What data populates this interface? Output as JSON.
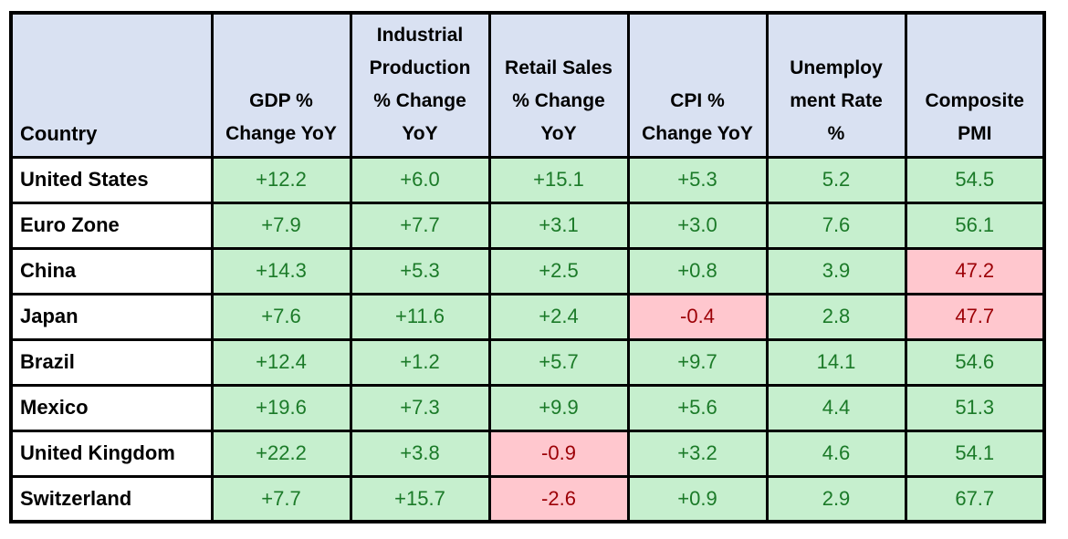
{
  "colors": {
    "header_fill": "#D9E1F2",
    "good_fill": "#C6EFCE",
    "good_text": "#1B7A28",
    "bad_fill": "#FFC7CE",
    "bad_text": "#9C0006",
    "border": "#000000",
    "country_fill": "#FFFFFF"
  },
  "table": {
    "headers": [
      "Country",
      "GDP %\nChange YoY",
      "Industrial\nProduction\n% Change\nYoY",
      "Retail Sales\n% Change\nYoY",
      "CPI %\nChange YoY",
      "Unemploy\nment Rate\n%",
      "Composite\nPMI"
    ],
    "rows": [
      {
        "country": "United States",
        "cells": [
          {
            "value": "+12.2",
            "status": "good"
          },
          {
            "value": "+6.0",
            "status": "good"
          },
          {
            "value": "+15.1",
            "status": "good"
          },
          {
            "value": "+5.3",
            "status": "good"
          },
          {
            "value": "5.2",
            "status": "good"
          },
          {
            "value": "54.5",
            "status": "good"
          }
        ]
      },
      {
        "country": "Euro Zone",
        "cells": [
          {
            "value": "+7.9",
            "status": "good"
          },
          {
            "value": "+7.7",
            "status": "good"
          },
          {
            "value": "+3.1",
            "status": "good"
          },
          {
            "value": "+3.0",
            "status": "good"
          },
          {
            "value": "7.6",
            "status": "good"
          },
          {
            "value": "56.1",
            "status": "good"
          }
        ]
      },
      {
        "country": "China",
        "cells": [
          {
            "value": "+14.3",
            "status": "good"
          },
          {
            "value": "+5.3",
            "status": "good"
          },
          {
            "value": "+2.5",
            "status": "good"
          },
          {
            "value": "+0.8",
            "status": "good"
          },
          {
            "value": "3.9",
            "status": "good"
          },
          {
            "value": "47.2",
            "status": "bad"
          }
        ]
      },
      {
        "country": "Japan",
        "cells": [
          {
            "value": "+7.6",
            "status": "good"
          },
          {
            "value": "+11.6",
            "status": "good"
          },
          {
            "value": "+2.4",
            "status": "good"
          },
          {
            "value": "-0.4",
            "status": "bad"
          },
          {
            "value": "2.8",
            "status": "good"
          },
          {
            "value": "47.7",
            "status": "bad"
          }
        ]
      },
      {
        "country": "Brazil",
        "cells": [
          {
            "value": "+12.4",
            "status": "good"
          },
          {
            "value": "+1.2",
            "status": "good"
          },
          {
            "value": "+5.7",
            "status": "good"
          },
          {
            "value": "+9.7",
            "status": "good"
          },
          {
            "value": "14.1",
            "status": "good"
          },
          {
            "value": "54.6",
            "status": "good"
          }
        ]
      },
      {
        "country": "Mexico",
        "cells": [
          {
            "value": "+19.6",
            "status": "good"
          },
          {
            "value": "+7.3",
            "status": "good"
          },
          {
            "value": "+9.9",
            "status": "good"
          },
          {
            "value": "+5.6",
            "status": "good"
          },
          {
            "value": "4.4",
            "status": "good"
          },
          {
            "value": "51.3",
            "status": "good"
          }
        ]
      },
      {
        "country": "United Kingdom",
        "cells": [
          {
            "value": "+22.2",
            "status": "good"
          },
          {
            "value": "+3.8",
            "status": "good"
          },
          {
            "value": "-0.9",
            "status": "bad"
          },
          {
            "value": "+3.2",
            "status": "good"
          },
          {
            "value": "4.6",
            "status": "good"
          },
          {
            "value": "54.1",
            "status": "good"
          }
        ]
      },
      {
        "country": "Switzerland",
        "cells": [
          {
            "value": "+7.7",
            "status": "good"
          },
          {
            "value": "+15.7",
            "status": "good"
          },
          {
            "value": "-2.6",
            "status": "bad"
          },
          {
            "value": "+0.9",
            "status": "good"
          },
          {
            "value": "2.9",
            "status": "good"
          },
          {
            "value": "67.7",
            "status": "good"
          }
        ]
      }
    ]
  },
  "chart_data": {
    "type": "table",
    "title": "Country economic indicators",
    "columns": [
      "Country",
      "GDP % Change YoY",
      "Industrial Production % Change YoY",
      "Retail Sales % Change YoY",
      "CPI % Change YoY",
      "Unemployment Rate %",
      "Composite PMI"
    ],
    "rows": [
      [
        "United States",
        12.2,
        6.0,
        15.1,
        5.3,
        5.2,
        54.5
      ],
      [
        "Euro Zone",
        7.9,
        7.7,
        3.1,
        3.0,
        7.6,
        56.1
      ],
      [
        "China",
        14.3,
        5.3,
        2.5,
        0.8,
        3.9,
        47.2
      ],
      [
        "Japan",
        7.6,
        11.6,
        2.4,
        -0.4,
        2.8,
        47.7
      ],
      [
        "Brazil",
        12.4,
        1.2,
        5.7,
        9.7,
        14.1,
        54.6
      ],
      [
        "Mexico",
        19.6,
        7.3,
        9.9,
        5.6,
        4.4,
        51.3
      ],
      [
        "United Kingdom",
        22.2,
        3.8,
        -0.9,
        3.2,
        4.6,
        54.1
      ],
      [
        "Switzerland",
        7.7,
        15.7,
        -2.6,
        0.9,
        2.9,
        67.7
      ]
    ],
    "highlight_rule": "green fill = favorable reading, pink/red fill = unfavorable reading (negative change or PMI below 50)"
  }
}
